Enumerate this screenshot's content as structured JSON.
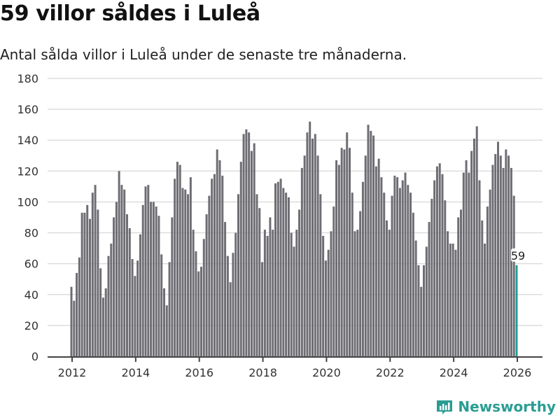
{
  "title": "59 villor såldes i Luleå",
  "subtitle": "Antal sålda villor i Luleå under de senaste tre månaderna.",
  "brand": "Newsworthy",
  "colors": {
    "bar": "#6e6d73",
    "highlight": "#1a9e95",
    "grid": "#dddddd"
  },
  "chart_data": {
    "type": "bar",
    "title": "59 villor såldes i Luleå",
    "xlabel": "",
    "ylabel": "",
    "ylim": [
      0,
      180
    ],
    "yticks": [
      0,
      20,
      40,
      60,
      80,
      100,
      120,
      140,
      160,
      180
    ],
    "xticks": [
      2012,
      2014,
      2016,
      2018,
      2020,
      2022,
      2024,
      2026
    ],
    "start": 2012,
    "frequency": "monthly",
    "values": [
      45,
      36,
      54,
      64,
      93,
      93,
      98,
      89,
      106,
      111,
      95,
      57,
      38,
      44,
      65,
      73,
      90,
      100,
      120,
      111,
      108,
      92,
      83,
      63,
      52,
      62,
      79,
      98,
      110,
      111,
      100,
      100,
      97,
      91,
      66,
      44,
      33,
      61,
      90,
      115,
      126,
      124,
      109,
      108,
      105,
      116,
      82,
      68,
      55,
      58,
      76,
      92,
      104,
      115,
      118,
      134,
      127,
      117,
      87,
      65,
      48,
      67,
      80,
      105,
      126,
      144,
      147,
      145,
      133,
      138,
      105,
      96,
      61,
      82,
      78,
      90,
      82,
      112,
      113,
      115,
      109,
      106,
      103,
      80,
      71,
      82,
      95,
      122,
      130,
      145,
      152,
      141,
      144,
      130,
      105,
      78,
      62,
      69,
      81,
      97,
      127,
      124,
      135,
      134,
      145,
      135,
      106,
      81,
      82,
      94,
      113,
      130,
      150,
      146,
      143,
      123,
      128,
      116,
      106,
      88,
      82,
      104,
      117,
      116,
      109,
      114,
      119,
      111,
      106,
      93,
      75,
      59,
      45,
      59,
      71,
      87,
      102,
      114,
      123,
      125,
      118,
      101,
      81,
      73,
      73,
      69,
      90,
      95,
      119,
      127,
      119,
      133,
      141,
      149,
      114,
      88,
      73,
      97,
      108,
      124,
      131,
      139,
      130,
      122,
      134,
      130,
      122,
      104,
      59
    ],
    "highlight_label": "59",
    "grid": true
  }
}
